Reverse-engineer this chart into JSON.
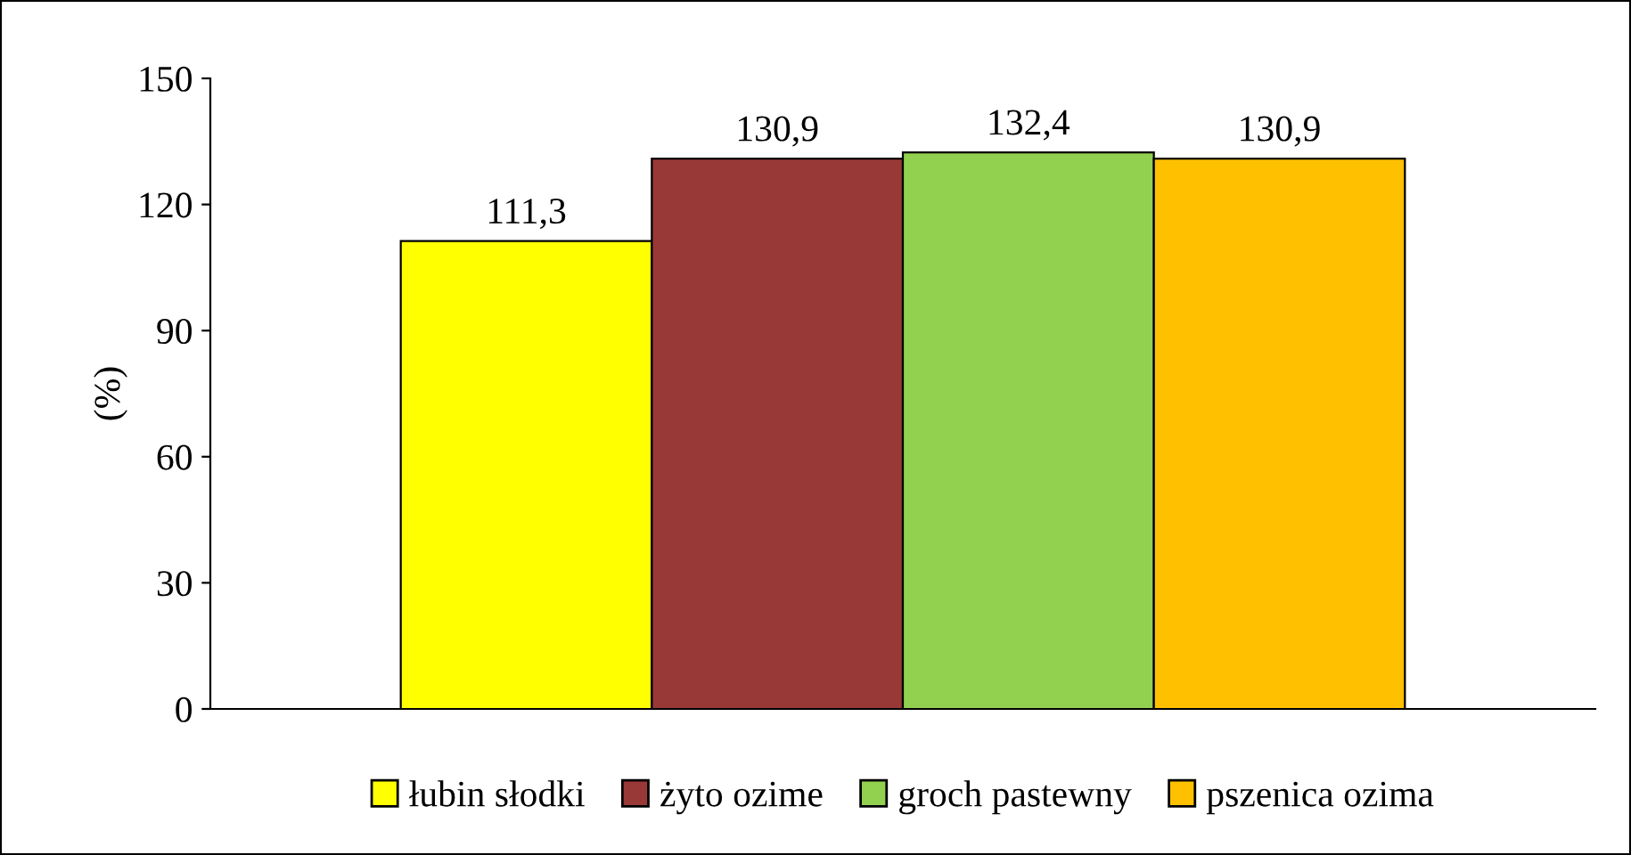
{
  "chart_data": {
    "type": "bar",
    "ylabel": "(%)",
    "categories": [
      null
    ],
    "series": [
      {
        "name": "łubin słodki",
        "color": "#ffff00",
        "values": [
          111.3
        ],
        "value_labels": [
          "111,3"
        ]
      },
      {
        "name": "żyto ozime",
        "color": "#993937",
        "values": [
          130.9
        ],
        "value_labels": [
          "130,9"
        ]
      },
      {
        "name": "groch pastewny",
        "color": "#92d050",
        "values": [
          132.4
        ],
        "value_labels": [
          "132,4"
        ]
      },
      {
        "name": "pszenica ozima",
        "color": "#ffc000",
        "values": [
          130.9
        ],
        "value_labels": [
          "130,9"
        ]
      }
    ],
    "ylim": [
      0,
      150
    ],
    "yticks": [
      0,
      30,
      60,
      90,
      120,
      150
    ],
    "grid": false,
    "legend": "bottom"
  }
}
